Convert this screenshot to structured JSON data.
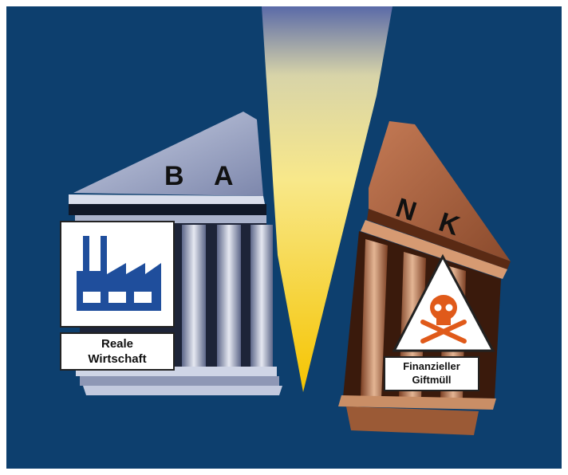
{
  "roof_letters": [
    "B",
    "A",
    "N",
    "K"
  ],
  "signs": [
    {
      "label_lines": [
        "Reale",
        "Wirtschaft"
      ]
    },
    {
      "label_lines": [
        "Finanzieller",
        "Giftmüll"
      ]
    }
  ]
}
